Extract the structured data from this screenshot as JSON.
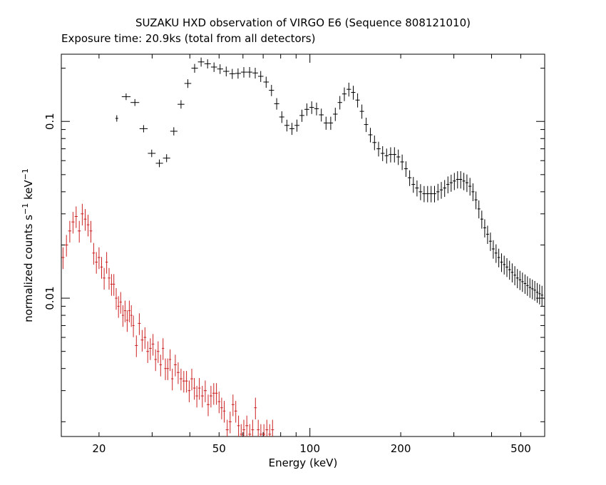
{
  "chart_data": {
    "type": "scatter",
    "title": "SUZAKU HXD observation of VIRGO E6 (Sequence 808121010)",
    "subtitle": "Exposure time: 20.9ks (total from all detectors)",
    "xlabel": "Energy (keV)",
    "ylabel": "normalized counts s",
    "ylabel_sup1": "−1",
    "ylabel_mid": " keV",
    "ylabel_sup2": "−1",
    "x_scale": "log",
    "y_scale": "log",
    "xlim": [
      15,
      600
    ],
    "ylim": [
      0.00165,
      0.24
    ],
    "x_tick_labels": [
      {
        "value": 20,
        "label": "20"
      },
      {
        "value": 50,
        "label": "50"
      },
      {
        "value": 100,
        "label": "100"
      },
      {
        "value": 200,
        "label": "200"
      },
      {
        "value": 500,
        "label": "500"
      }
    ],
    "y_tick_labels": [
      {
        "value": 0.1,
        "label": "0.1"
      },
      {
        "value": 0.01,
        "label": "0.01"
      }
    ],
    "grid": false,
    "series": [
      {
        "color": "#000000",
        "points": [
          [
            22.9,
            0.104
          ],
          [
            24.6,
            0.138
          ],
          [
            26.3,
            0.128
          ],
          [
            28.1,
            0.091
          ],
          [
            29.9,
            0.066
          ],
          [
            31.7,
            0.058
          ],
          [
            33.5,
            0.062
          ],
          [
            35.4,
            0.088
          ],
          [
            37.4,
            0.125
          ],
          [
            39.4,
            0.164
          ],
          [
            41.5,
            0.2
          ],
          [
            43.6,
            0.217
          ],
          [
            45.8,
            0.212
          ],
          [
            48.1,
            0.203
          ],
          [
            50.4,
            0.198
          ],
          [
            52.8,
            0.192
          ],
          [
            55.3,
            0.186
          ],
          [
            57.8,
            0.187
          ],
          [
            60.4,
            0.19
          ],
          [
            63.1,
            0.19
          ],
          [
            65.9,
            0.188
          ],
          [
            68.7,
            0.18
          ],
          [
            71.6,
            0.167
          ],
          [
            74.6,
            0.15
          ],
          [
            77.6,
            0.126
          ],
          [
            80.7,
            0.106
          ],
          [
            83.9,
            0.095
          ],
          [
            87.2,
            0.091
          ],
          [
            90.6,
            0.095
          ],
          [
            94.1,
            0.108
          ],
          [
            97.7,
            0.117
          ],
          [
            101.4,
            0.12
          ],
          [
            105.2,
            0.118
          ],
          [
            109.1,
            0.109
          ],
          [
            113.1,
            0.098
          ],
          [
            117.2,
            0.098
          ],
          [
            121.4,
            0.11
          ],
          [
            125.7,
            0.128
          ],
          [
            130.1,
            0.143
          ],
          [
            134.6,
            0.152
          ],
          [
            139.2,
            0.146
          ],
          [
            143.9,
            0.132
          ],
          [
            148.7,
            0.114
          ],
          [
            153.6,
            0.096
          ],
          [
            158.6,
            0.084
          ],
          [
            163.7,
            0.076
          ],
          [
            168.9,
            0.07
          ],
          [
            174.2,
            0.066
          ],
          [
            179.6,
            0.064
          ],
          [
            185.1,
            0.065
          ],
          [
            190.7,
            0.065
          ],
          [
            196.4,
            0.063
          ],
          [
            202.2,
            0.059
          ],
          [
            208.1,
            0.054
          ],
          [
            214.1,
            0.048
          ],
          [
            220.2,
            0.044
          ],
          [
            226.4,
            0.042
          ],
          [
            232.7,
            0.04
          ],
          [
            239.1,
            0.039
          ],
          [
            245.6,
            0.039
          ],
          [
            252.2,
            0.039
          ],
          [
            258.9,
            0.039
          ],
          [
            265.7,
            0.04
          ],
          [
            272.6,
            0.041
          ],
          [
            279.6,
            0.042
          ],
          [
            286.7,
            0.044
          ],
          [
            293.9,
            0.045
          ],
          [
            301.2,
            0.046
          ],
          [
            308.6,
            0.047
          ],
          [
            316.1,
            0.047
          ],
          [
            323.7,
            0.046
          ],
          [
            331.4,
            0.045
          ],
          [
            339.2,
            0.043
          ],
          [
            347.1,
            0.04
          ],
          [
            355.1,
            0.036
          ],
          [
            363.2,
            0.032
          ],
          [
            371.4,
            0.028
          ],
          [
            379.7,
            0.025
          ],
          [
            388.1,
            0.023
          ],
          [
            396.6,
            0.021
          ],
          [
            405.2,
            0.019
          ],
          [
            413.9,
            0.018
          ],
          [
            422.7,
            0.017
          ],
          [
            431.6,
            0.016
          ],
          [
            440.6,
            0.0155
          ],
          [
            449.7,
            0.015
          ],
          [
            458.9,
            0.0145
          ],
          [
            468.2,
            0.014
          ],
          [
            477.6,
            0.0135
          ],
          [
            487.1,
            0.013
          ],
          [
            496.7,
            0.0127
          ],
          [
            506.4,
            0.0124
          ],
          [
            516.2,
            0.0121
          ],
          [
            526.1,
            0.0118
          ],
          [
            536.1,
            0.0115
          ],
          [
            546.2,
            0.0113
          ],
          [
            556.4,
            0.0111
          ],
          [
            566.7,
            0.0108
          ],
          [
            577.1,
            0.0106
          ],
          [
            587.6,
            0.0104
          ]
        ]
      },
      {
        "color": "#cc2222",
        "points": [
          [
            15.2,
            0.017
          ],
          [
            15.6,
            0.02
          ],
          [
            16.0,
            0.024
          ],
          [
            16.4,
            0.027
          ],
          [
            16.8,
            0.029
          ],
          [
            17.2,
            0.024
          ],
          [
            17.6,
            0.03
          ],
          [
            18.0,
            0.028
          ],
          [
            18.4,
            0.026
          ],
          [
            18.8,
            0.024
          ],
          [
            19.2,
            0.018
          ],
          [
            19.6,
            0.016
          ],
          [
            20.0,
            0.017
          ],
          [
            20.4,
            0.015
          ],
          [
            20.8,
            0.013
          ],
          [
            21.2,
            0.016
          ],
          [
            21.6,
            0.013
          ],
          [
            22.0,
            0.012
          ],
          [
            22.4,
            0.012
          ],
          [
            22.8,
            0.01
          ],
          [
            23.2,
            0.009
          ],
          [
            23.6,
            0.0095
          ],
          [
            24.0,
            0.008
          ],
          [
            24.4,
            0.0085
          ],
          [
            24.8,
            0.0075
          ],
          [
            25.2,
            0.0085
          ],
          [
            25.6,
            0.008
          ],
          [
            26.0,
            0.007
          ],
          [
            26.6,
            0.0054
          ],
          [
            27.2,
            0.0072
          ],
          [
            27.8,
            0.0058
          ],
          [
            28.4,
            0.006
          ],
          [
            29.0,
            0.005
          ],
          [
            29.6,
            0.0052
          ],
          [
            30.2,
            0.0055
          ],
          [
            30.8,
            0.0045
          ],
          [
            31.4,
            0.005
          ],
          [
            32.0,
            0.0042
          ],
          [
            32.6,
            0.0052
          ],
          [
            33.2,
            0.004
          ],
          [
            33.8,
            0.004
          ],
          [
            34.4,
            0.0045
          ],
          [
            35.0,
            0.0035
          ],
          [
            35.8,
            0.0042
          ],
          [
            36.6,
            0.0038
          ],
          [
            37.4,
            0.0035
          ],
          [
            38.2,
            0.0034
          ],
          [
            39.0,
            0.0034
          ],
          [
            39.8,
            0.003
          ],
          [
            40.6,
            0.0035
          ],
          [
            41.4,
            0.0031
          ],
          [
            42.2,
            0.0028
          ],
          [
            43.0,
            0.0031
          ],
          [
            44.0,
            0.0028
          ],
          [
            45.0,
            0.003
          ],
          [
            46.0,
            0.0025
          ],
          [
            47.0,
            0.0028
          ],
          [
            48.0,
            0.0029
          ],
          [
            49.0,
            0.0029
          ],
          [
            50.0,
            0.0026
          ],
          [
            51.0,
            0.0024
          ],
          [
            52.0,
            0.0023
          ],
          [
            53.2,
            0.0018
          ],
          [
            54.4,
            0.002
          ],
          [
            55.6,
            0.0025
          ],
          [
            56.8,
            0.0023
          ],
          [
            58.0,
            0.0019
          ],
          [
            59.2,
            0.0017
          ],
          [
            60.4,
            0.0018
          ],
          [
            61.8,
            0.0019
          ],
          [
            63.2,
            0.0017
          ],
          [
            64.6,
            0.0018
          ],
          [
            66.0,
            0.0024
          ],
          [
            67.4,
            0.0018
          ],
          [
            68.8,
            0.0017
          ],
          [
            70.4,
            0.0017
          ],
          [
            72.0,
            0.0018
          ],
          [
            73.6,
            0.0017
          ],
          [
            75.2,
            0.0018
          ]
        ]
      }
    ]
  }
}
